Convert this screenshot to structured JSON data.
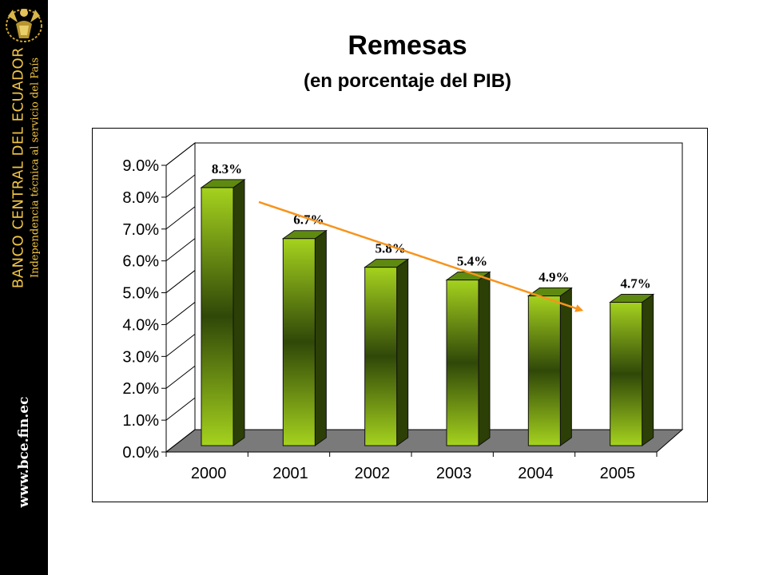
{
  "branding": {
    "bank_name": "Banco Central del Ecuador",
    "tagline": "Independencia técnica al servicio del País",
    "website": "www.bce.fin.ec",
    "logo_icon": "condor-crest-icon"
  },
  "colors": {
    "sidebar_bg": "#000000",
    "brand_gold": "#f2c542",
    "bar_light": "#a5d21e",
    "bar_dark": "#2c3f06",
    "floor": "#7a7a7a",
    "trend_arrow": "#f7941d"
  },
  "chart_data": {
    "type": "bar",
    "title": "Remesas",
    "subtitle": "(en porcentaje del PIB)",
    "categories": [
      "2000",
      "2001",
      "2002",
      "2003",
      "2004",
      "2005"
    ],
    "values": [
      8.3,
      6.7,
      5.8,
      5.4,
      4.9,
      4.7
    ],
    "data_labels": [
      "8.3%",
      "6.7%",
      "5.8%",
      "5.4%",
      "4.9%",
      "4.7%"
    ],
    "y_ticks": [
      "0.0%",
      "1.0%",
      "2.0%",
      "3.0%",
      "4.0%",
      "5.0%",
      "6.0%",
      "7.0%",
      "8.0%",
      "9.0%"
    ],
    "ylim": [
      0,
      9
    ],
    "grid": false,
    "legend": "none",
    "trend_arrow": {
      "from_category": "2000",
      "to_category": "2004",
      "direction": "down"
    },
    "style": "3d-bar"
  }
}
